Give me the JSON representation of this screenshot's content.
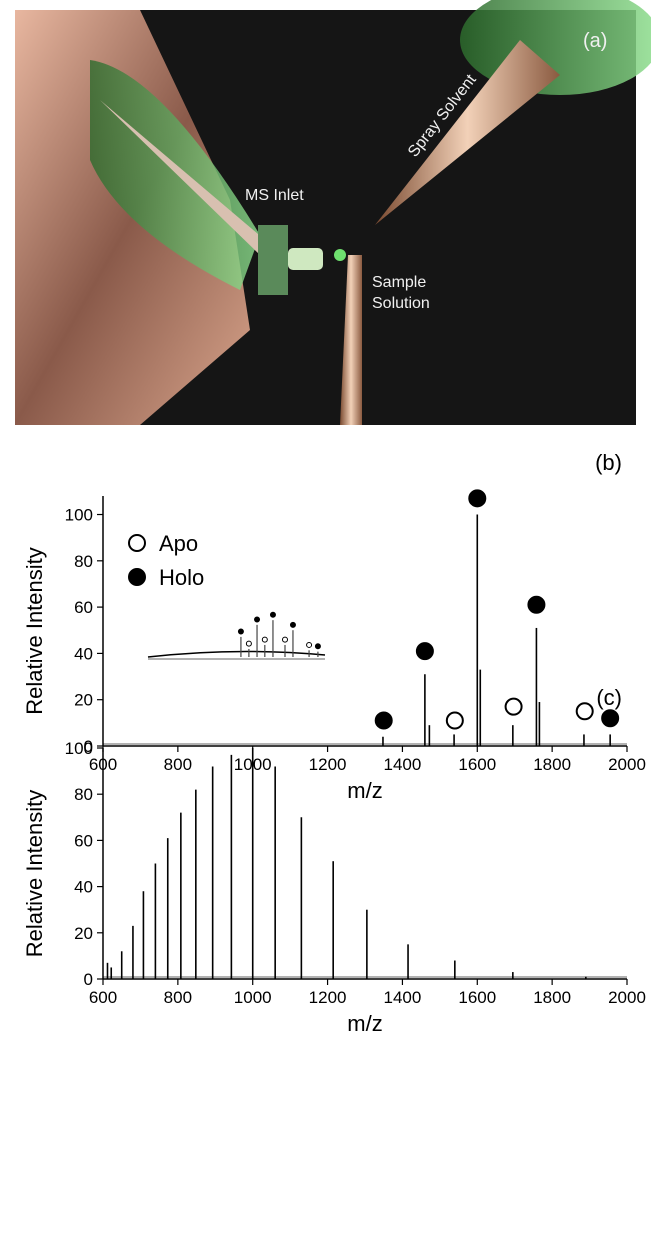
{
  "photo": {
    "panel": "(a)",
    "ms_inlet": "MS Inlet",
    "spray_solvent": "Spray Solvent",
    "sample_solution": "Sample Solution"
  },
  "chart_data": [
    {
      "type": "spectrum",
      "label": "(b)",
      "xlabel": "m/z",
      "ylabel": "Relative Intensity",
      "xlim": [
        600,
        2000
      ],
      "xticks": [
        600,
        800,
        1000,
        1200,
        1400,
        1600,
        1800,
        2000
      ],
      "ylim": [
        0,
        108
      ],
      "yticks": [
        0,
        20,
        40,
        60,
        80,
        100
      ],
      "color": "#000000",
      "legend": "upper left",
      "x": [
        1348,
        1460,
        1472,
        1538,
        1600,
        1608,
        1695,
        1758,
        1766,
        1885,
        1955
      ],
      "values": [
        4,
        31,
        9,
        5,
        100,
        33,
        9,
        51,
        19,
        5,
        5
      ],
      "series": [
        {
          "name": "Apo",
          "marker": "open",
          "x": [
            1540,
            1697,
            1887
          ],
          "values": [
            11,
            17,
            15
          ]
        },
        {
          "name": "Holo",
          "marker": "filled",
          "x": [
            1350,
            1460,
            1600,
            1758,
            1955
          ],
          "values": [
            11,
            41,
            107,
            61,
            12
          ]
        }
      ],
      "inset": {
        "xlim": [
          0,
          100
        ],
        "ylim": [
          0,
          100
        ],
        "x": [
          52.5,
          57,
          61.6,
          66,
          70.6,
          77.4,
          81.9,
          91,
          96
        ],
        "values": [
          30,
          12,
          48,
          18,
          55,
          18,
          40,
          10,
          8
        ],
        "series": [
          {
            "name": "Apo",
            "marker": "open",
            "x": [
              57,
              66,
              77.4,
              91
            ],
            "values": [
              20,
              26,
              26,
              18
            ]
          },
          {
            "name": "Holo",
            "marker": "filled",
            "x": [
              52.5,
              61.6,
              70.6,
              81.9,
              96
            ],
            "values": [
              38,
              56,
              63,
              48,
              16
            ]
          }
        ]
      }
    },
    {
      "type": "spectrum",
      "label": "(c)",
      "xlabel": "m/z",
      "ylabel": "Relative Intensity",
      "xlim": [
        600,
        2000
      ],
      "xticks": [
        600,
        800,
        1000,
        1200,
        1400,
        1600,
        1800,
        2000
      ],
      "ylim": [
        0,
        100
      ],
      "yticks": [
        0,
        20,
        40,
        60,
        80,
        100
      ],
      "color": "#000000",
      "x": [
        612,
        622,
        650,
        680,
        708,
        740,
        773,
        808,
        848,
        893,
        943,
        1000,
        1060,
        1130,
        1215,
        1305,
        1415,
        1540,
        1695,
        1890
      ],
      "values": [
        7,
        5,
        12,
        23,
        38,
        50,
        61,
        72,
        82,
        92,
        97,
        100,
        92,
        70,
        51,
        30,
        15,
        8,
        3,
        1
      ]
    }
  ]
}
